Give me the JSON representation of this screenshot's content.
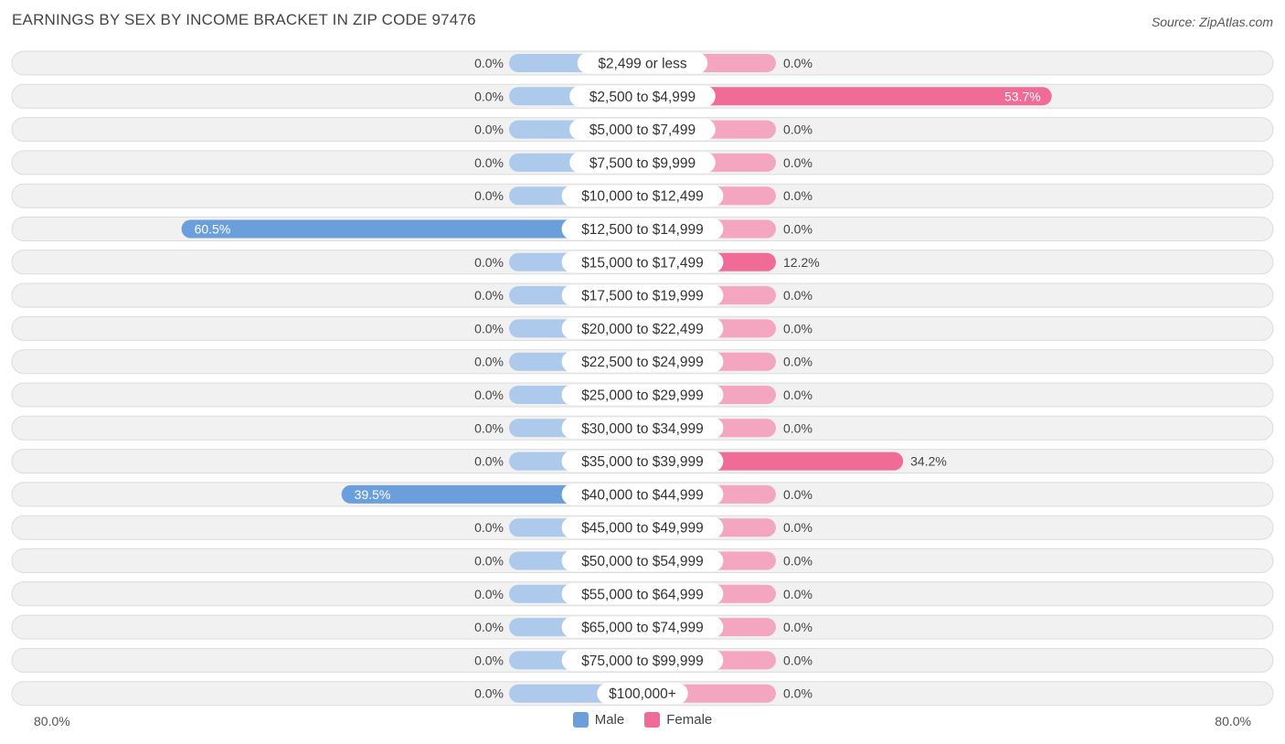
{
  "header": {
    "title": "EARNINGS BY SEX BY INCOME BRACKET IN ZIP CODE 97476",
    "source": "Source: ZipAtlas.com"
  },
  "colors": {
    "male_strong": "#6a9fdc",
    "male_light": "#adc9ec",
    "female_strong": "#f06b96",
    "female_light": "#f4a6c0",
    "row_bg": "#f1f1f1",
    "row_border": "#dcdcdc"
  },
  "axis": {
    "left_label": "80.0%",
    "right_label": "80.0%"
  },
  "legend": {
    "male": "Male",
    "female": "Female"
  },
  "chart_data": {
    "type": "bar",
    "orientation": "horizontal-diverging",
    "title": "EARNINGS BY SEX BY INCOME BRACKET IN ZIP CODE 97476",
    "xlim": [
      -80,
      80
    ],
    "categories": [
      "$2,499 or less",
      "$2,500 to $4,999",
      "$5,000 to $7,499",
      "$7,500 to $9,999",
      "$10,000 to $12,499",
      "$12,500 to $14,999",
      "$15,000 to $17,499",
      "$17,500 to $19,999",
      "$20,000 to $22,499",
      "$22,500 to $24,999",
      "$25,000 to $29,999",
      "$30,000 to $34,999",
      "$35,000 to $39,999",
      "$40,000 to $44,999",
      "$45,000 to $49,999",
      "$50,000 to $54,999",
      "$55,000 to $64,999",
      "$65,000 to $74,999",
      "$75,000 to $99,999",
      "$100,000+"
    ],
    "series": [
      {
        "name": "Male",
        "values": [
          0,
          0,
          0,
          0,
          0,
          60.5,
          0,
          0,
          0,
          0,
          0,
          0,
          0,
          39.5,
          0,
          0,
          0,
          0,
          0,
          0
        ],
        "labels": [
          "0.0%",
          "0.0%",
          "0.0%",
          "0.0%",
          "0.0%",
          "60.5%",
          "0.0%",
          "0.0%",
          "0.0%",
          "0.0%",
          "0.0%",
          "0.0%",
          "0.0%",
          "39.5%",
          "0.0%",
          "0.0%",
          "0.0%",
          "0.0%",
          "0.0%",
          "0.0%"
        ]
      },
      {
        "name": "Female",
        "values": [
          0,
          53.7,
          0,
          0,
          0,
          0,
          12.2,
          0,
          0,
          0,
          0,
          0,
          34.2,
          0,
          0,
          0,
          0,
          0,
          0,
          0
        ],
        "labels": [
          "0.0%",
          "53.7%",
          "0.0%",
          "0.0%",
          "0.0%",
          "0.0%",
          "12.2%",
          "0.0%",
          "0.0%",
          "0.0%",
          "0.0%",
          "0.0%",
          "34.2%",
          "0.0%",
          "0.0%",
          "0.0%",
          "0.0%",
          "0.0%",
          "0.0%",
          "0.0%"
        ]
      }
    ]
  }
}
